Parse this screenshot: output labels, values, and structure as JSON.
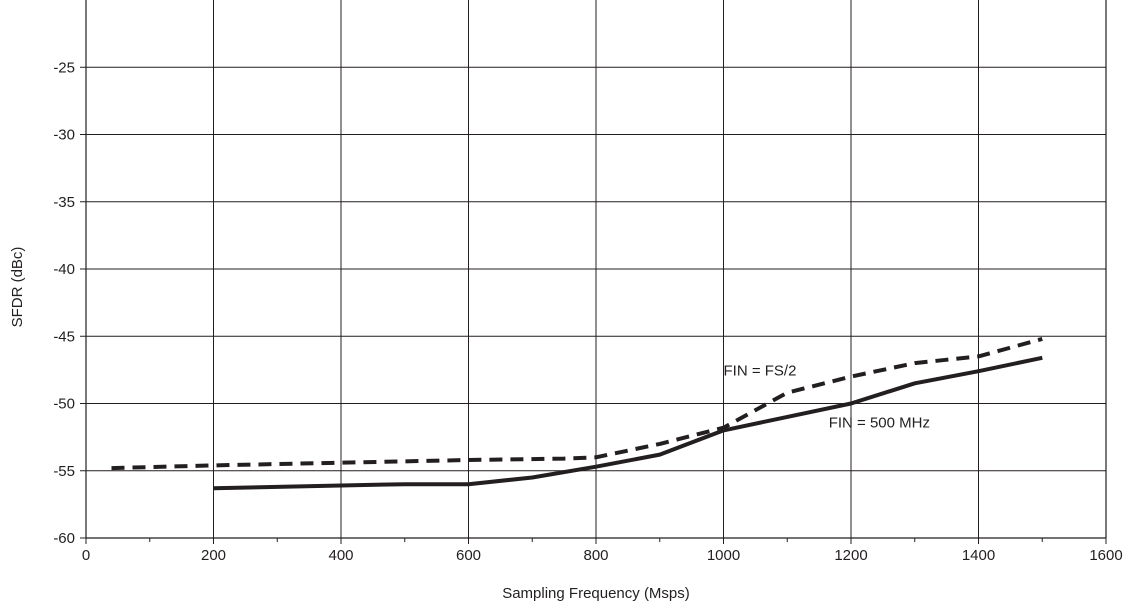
{
  "chart_data": {
    "type": "line",
    "title": "",
    "xlabel": "Sampling Frequency (Msps)",
    "ylabel": "SFDR (dBc)",
    "xlim": [
      0,
      1600
    ],
    "ylim": [
      -60,
      -20
    ],
    "xticks": [
      0,
      200,
      400,
      600,
      800,
      1000,
      1200,
      1400,
      1600
    ],
    "yticks": [
      -60,
      -55,
      -50,
      -45,
      -40,
      -35,
      -30,
      -25
    ],
    "grid": true,
    "series": [
      {
        "name": "FIN = FS/2",
        "style": "dashed",
        "color": "#231f20",
        "x": [
          40,
          200,
          400,
          600,
          750,
          800,
          900,
          1000,
          1100,
          1200,
          1300,
          1400,
          1500
        ],
        "y": [
          -54.8,
          -54.6,
          -54.4,
          -54.2,
          -54.1,
          -54.0,
          -53.0,
          -51.8,
          -49.2,
          -48.0,
          -47.0,
          -46.5,
          -45.2
        ]
      },
      {
        "name": "FIN = 500 MHz",
        "style": "solid",
        "color": "#231f20",
        "x": [
          200,
          400,
          500,
          600,
          700,
          800,
          900,
          1000,
          1100,
          1200,
          1300,
          1400,
          1500
        ],
        "y": [
          -56.3,
          -56.1,
          -56.0,
          -56.0,
          -55.5,
          -54.7,
          -53.8,
          -52.0,
          -51.0,
          -50.0,
          -48.5,
          -47.6,
          -46.6
        ]
      }
    ],
    "annotations": [
      {
        "text": "FIN = FS/2",
        "x": 1000,
        "y": -47.9
      },
      {
        "text": "FIN = 500 MHz",
        "x": 1165,
        "y": -51.8
      }
    ]
  }
}
